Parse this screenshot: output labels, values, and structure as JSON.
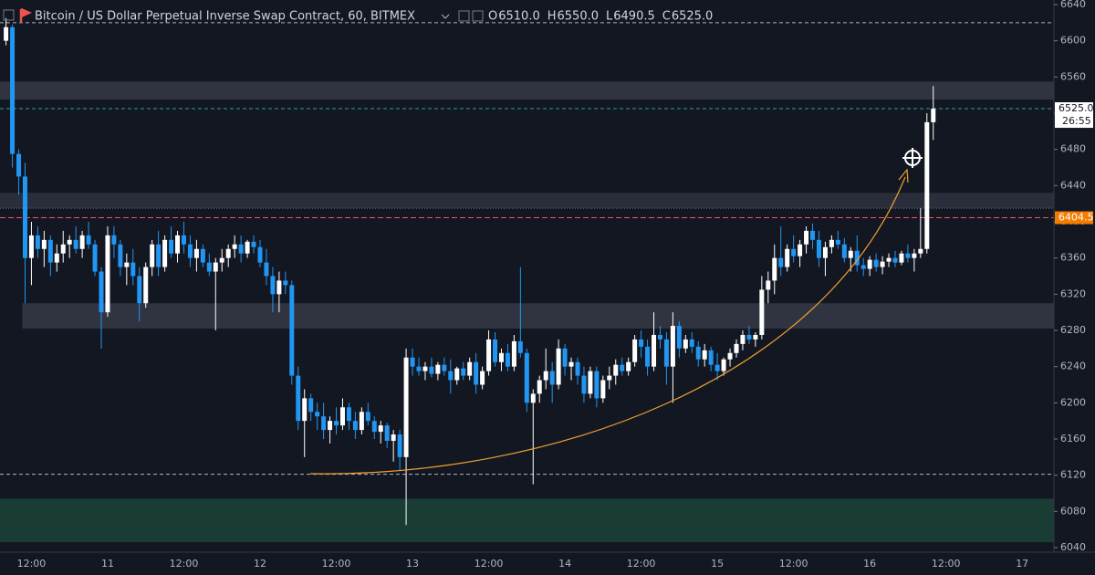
{
  "header": {
    "title": "Bitcoin / US Dollar Perpetual Inverse Swap Contract, 60, BITMEX",
    "ohlc_legend": [
      {
        "key": "O",
        "value": "6510.0"
      },
      {
        "key": "H",
        "value": "6550.0"
      },
      {
        "key": "L",
        "value": "6490.5"
      },
      {
        "key": "C",
        "value": "6525.0"
      }
    ]
  },
  "chart_data": {
    "type": "candlestick",
    "up_color": "#ffffff",
    "down_color": "#2196f3",
    "grid": false,
    "ylim": [
      6040,
      6640
    ],
    "yticks": [
      6040,
      6080,
      6120,
      6160,
      6200,
      6240,
      6280,
      6320,
      6360,
      6400,
      6440,
      6480,
      6520,
      6560,
      6600,
      6640
    ],
    "categories": [
      null,
      null,
      null,
      null,
      "12:00",
      null,
      null,
      null,
      null,
      null,
      null,
      null,
      null,
      null,
      null,
      null,
      "11",
      null,
      null,
      null,
      null,
      null,
      null,
      null,
      null,
      null,
      null,
      null,
      "12:00",
      null,
      null,
      null,
      null,
      null,
      null,
      null,
      null,
      null,
      null,
      null,
      "12",
      null,
      null,
      null,
      null,
      null,
      null,
      null,
      null,
      null,
      null,
      null,
      "12:00",
      null,
      null,
      null,
      null,
      null,
      null,
      null,
      null,
      null,
      null,
      null,
      "13",
      null,
      null,
      null,
      null,
      null,
      null,
      null,
      null,
      null,
      null,
      null,
      "12:00",
      null,
      null,
      null,
      null,
      null,
      null,
      null,
      null,
      null,
      null,
      null,
      "14",
      null,
      null,
      null,
      null,
      null,
      null,
      null,
      null,
      null,
      null,
      null,
      "12:00",
      null,
      null,
      null,
      null,
      null,
      null,
      null,
      null,
      null,
      null,
      null,
      "15",
      null,
      null,
      null,
      null,
      null,
      null,
      null,
      null,
      null,
      null,
      null,
      "12:00",
      null,
      null,
      null,
      null,
      null,
      null,
      null,
      null,
      null,
      null,
      null,
      "16",
      null,
      null,
      null,
      null,
      null,
      null,
      null,
      null,
      null,
      null,
      null,
      "12:00",
      null,
      null,
      null,
      null,
      null,
      null,
      null,
      null,
      null,
      null,
      null,
      "17"
    ],
    "ohlc": [
      [
        6600,
        6625,
        6595,
        6615
      ],
      [
        6615,
        6618,
        6460,
        6475
      ],
      [
        6475,
        6480,
        6430,
        6450
      ],
      [
        6450,
        6465,
        6310,
        6360
      ],
      [
        6360,
        6400,
        6330,
        6385
      ],
      [
        6385,
        6395,
        6360,
        6370
      ],
      [
        6370,
        6390,
        6350,
        6380
      ],
      [
        6380,
        6385,
        6340,
        6355
      ],
      [
        6355,
        6375,
        6345,
        6365
      ],
      [
        6365,
        6390,
        6355,
        6375
      ],
      [
        6375,
        6385,
        6360,
        6380
      ],
      [
        6380,
        6395,
        6365,
        6370
      ],
      [
        6370,
        6390,
        6360,
        6385
      ],
      [
        6385,
        6400,
        6370,
        6375
      ],
      [
        6375,
        6380,
        6340,
        6345
      ],
      [
        6345,
        6350,
        6260,
        6300
      ],
      [
        6300,
        6395,
        6295,
        6385
      ],
      [
        6385,
        6395,
        6360,
        6375
      ],
      [
        6375,
        6380,
        6340,
        6350
      ],
      [
        6350,
        6365,
        6330,
        6355
      ],
      [
        6355,
        6370,
        6330,
        6340
      ],
      [
        6340,
        6350,
        6290,
        6310
      ],
      [
        6310,
        6355,
        6305,
        6350
      ],
      [
        6350,
        6380,
        6340,
        6375
      ],
      [
        6375,
        6390,
        6340,
        6350
      ],
      [
        6350,
        6385,
        6345,
        6380
      ],
      [
        6380,
        6395,
        6360,
        6365
      ],
      [
        6365,
        6390,
        6355,
        6385
      ],
      [
        6385,
        6400,
        6365,
        6375
      ],
      [
        6375,
        6385,
        6350,
        6360
      ],
      [
        6360,
        6380,
        6345,
        6370
      ],
      [
        6370,
        6375,
        6350,
        6355
      ],
      [
        6355,
        6365,
        6340,
        6345
      ],
      [
        6345,
        6360,
        6280,
        6355
      ],
      [
        6355,
        6370,
        6345,
        6360
      ],
      [
        6360,
        6375,
        6350,
        6370
      ],
      [
        6370,
        6385,
        6360,
        6375
      ],
      [
        6375,
        6385,
        6355,
        6365
      ],
      [
        6365,
        6380,
        6360,
        6378
      ],
      [
        6378,
        6385,
        6365,
        6372
      ],
      [
        6372,
        6380,
        6350,
        6355
      ],
      [
        6355,
        6370,
        6330,
        6340
      ],
      [
        6340,
        6350,
        6300,
        6320
      ],
      [
        6320,
        6345,
        6300,
        6335
      ],
      [
        6335,
        6345,
        6320,
        6330
      ],
      [
        6330,
        6335,
        6220,
        6230
      ],
      [
        6230,
        6240,
        6170,
        6180
      ],
      [
        6180,
        6215,
        6140,
        6205
      ],
      [
        6205,
        6210,
        6180,
        6190
      ],
      [
        6190,
        6200,
        6170,
        6185
      ],
      [
        6185,
        6200,
        6160,
        6170
      ],
      [
        6170,
        6185,
        6155,
        6180
      ],
      [
        6180,
        6195,
        6165,
        6175
      ],
      [
        6175,
        6205,
        6170,
        6195
      ],
      [
        6195,
        6200,
        6170,
        6180
      ],
      [
        6180,
        6190,
        6160,
        6170
      ],
      [
        6170,
        6195,
        6165,
        6190
      ],
      [
        6190,
        6200,
        6175,
        6180
      ],
      [
        6180,
        6185,
        6160,
        6168
      ],
      [
        6168,
        6180,
        6155,
        6175
      ],
      [
        6175,
        6178,
        6150,
        6158
      ],
      [
        6158,
        6170,
        6135,
        6165
      ],
      [
        6165,
        6170,
        6125,
        6140
      ],
      [
        6140,
        6260,
        6065,
        6250
      ],
      [
        6250,
        6260,
        6230,
        6240
      ],
      [
        6240,
        6250,
        6230,
        6235
      ],
      [
        6235,
        6245,
        6225,
        6240
      ],
      [
        6240,
        6250,
        6228,
        6232
      ],
      [
        6232,
        6245,
        6225,
        6242
      ],
      [
        6242,
        6250,
        6230,
        6235
      ],
      [
        6235,
        6248,
        6210,
        6225
      ],
      [
        6225,
        6240,
        6220,
        6238
      ],
      [
        6238,
        6245,
        6225,
        6230
      ],
      [
        6230,
        6250,
        6225,
        6245
      ],
      [
        6245,
        6255,
        6210,
        6220
      ],
      [
        6220,
        6240,
        6215,
        6235
      ],
      [
        6235,
        6280,
        6230,
        6270
      ],
      [
        6270,
        6278,
        6240,
        6245
      ],
      [
        6245,
        6260,
        6235,
        6255
      ],
      [
        6255,
        6265,
        6235,
        6240
      ],
      [
        6240,
        6275,
        6235,
        6268
      ],
      [
        6268,
        6350,
        6250,
        6255
      ],
      [
        6255,
        6260,
        6190,
        6200
      ],
      [
        6200,
        6215,
        6110,
        6210
      ],
      [
        6210,
        6230,
        6200,
        6225
      ],
      [
        6225,
        6260,
        6215,
        6235
      ],
      [
        6235,
        6245,
        6200,
        6220
      ],
      [
        6220,
        6270,
        6215,
        6260
      ],
      [
        6260,
        6265,
        6230,
        6240
      ],
      [
        6240,
        6250,
        6225,
        6245
      ],
      [
        6245,
        6250,
        6220,
        6230
      ],
      [
        6230,
        6240,
        6200,
        6210
      ],
      [
        6210,
        6240,
        6205,
        6235
      ],
      [
        6235,
        6240,
        6195,
        6205
      ],
      [
        6205,
        6230,
        6200,
        6225
      ],
      [
        6225,
        6240,
        6215,
        6230
      ],
      [
        6230,
        6248,
        6220,
        6242
      ],
      [
        6242,
        6250,
        6230,
        6235
      ],
      [
        6235,
        6250,
        6230,
        6245
      ],
      [
        6245,
        6275,
        6240,
        6270
      ],
      [
        6270,
        6280,
        6250,
        6262
      ],
      [
        6262,
        6270,
        6230,
        6240
      ],
      [
        6240,
        6300,
        6235,
        6275
      ],
      [
        6275,
        6285,
        6260,
        6270
      ],
      [
        6270,
        6278,
        6220,
        6240
      ],
      [
        6240,
        6300,
        6200,
        6285
      ],
      [
        6285,
        6290,
        6250,
        6260
      ],
      [
        6260,
        6275,
        6255,
        6270
      ],
      [
        6270,
        6278,
        6255,
        6262
      ],
      [
        6262,
        6268,
        6240,
        6248
      ],
      [
        6248,
        6265,
        6240,
        6258
      ],
      [
        6258,
        6262,
        6235,
        6242
      ],
      [
        6242,
        6255,
        6225,
        6235
      ],
      [
        6235,
        6250,
        6230,
        6248
      ],
      [
        6248,
        6260,
        6240,
        6255
      ],
      [
        6255,
        6270,
        6250,
        6265
      ],
      [
        6265,
        6280,
        6258,
        6275
      ],
      [
        6275,
        6285,
        6265,
        6270
      ],
      [
        6270,
        6278,
        6262,
        6275
      ],
      [
        6275,
        6340,
        6270,
        6325
      ],
      [
        6325,
        6345,
        6310,
        6335
      ],
      [
        6335,
        6375,
        6320,
        6360
      ],
      [
        6360,
        6395,
        6340,
        6350
      ],
      [
        6350,
        6375,
        6345,
        6370
      ],
      [
        6370,
        6385,
        6355,
        6362
      ],
      [
        6362,
        6380,
        6350,
        6375
      ],
      [
        6375,
        6395,
        6365,
        6390
      ],
      [
        6390,
        6398,
        6370,
        6380
      ],
      [
        6380,
        6390,
        6350,
        6360
      ],
      [
        6360,
        6378,
        6340,
        6372
      ],
      [
        6372,
        6385,
        6365,
        6380
      ],
      [
        6380,
        6390,
        6370,
        6375
      ],
      [
        6375,
        6382,
        6355,
        6360
      ],
      [
        6360,
        6372,
        6345,
        6368
      ],
      [
        6368,
        6385,
        6345,
        6352
      ],
      [
        6352,
        6360,
        6340,
        6348
      ],
      [
        6348,
        6362,
        6340,
        6358
      ],
      [
        6358,
        6365,
        6345,
        6350
      ],
      [
        6350,
        6362,
        6342,
        6356
      ],
      [
        6356,
        6365,
        6350,
        6360
      ],
      [
        6360,
        6368,
        6350,
        6355
      ],
      [
        6355,
        6368,
        6352,
        6365
      ],
      [
        6365,
        6375,
        6355,
        6360
      ],
      [
        6360,
        6370,
        6345,
        6365
      ],
      [
        6365,
        6415,
        6360,
        6370
      ],
      [
        6370,
        6520,
        6365,
        6510
      ],
      [
        6510,
        6550,
        6490.5,
        6525
      ],
      null,
      null,
      null,
      null,
      null,
      null,
      null,
      null,
      null,
      null,
      null,
      null,
      null,
      null
    ],
    "zones": [
      {
        "low": 6535,
        "high": 6555,
        "color": "#363a45"
      },
      {
        "low": 6415,
        "high": 6432,
        "color": "#2f333e"
      },
      {
        "low": 6282,
        "high": 6310,
        "color": "#363a45"
      },
      {
        "low": 6046,
        "high": 6094,
        "color": "#1b4337"
      }
    ],
    "lines": [
      {
        "value": 6620,
        "color": "#b2b5be",
        "dash": "4 3"
      },
      {
        "value": 6525,
        "color": "#26a69a",
        "dash": "4 3",
        "label": "6525.0",
        "sublabel": "26:55",
        "label_bg": "#ffffff",
        "label_color": "#131722"
      },
      {
        "value": 6415,
        "color": "#787b86",
        "dash": "1 2"
      },
      {
        "value": 6404.5,
        "color": "#f7525f",
        "dash": "6 3",
        "label": "6404.5",
        "label_bg": "#f57c00",
        "label_color": "#ffffff"
      },
      {
        "value": 6121,
        "color": "#b2b5be",
        "dash": "4 3"
      }
    ]
  }
}
